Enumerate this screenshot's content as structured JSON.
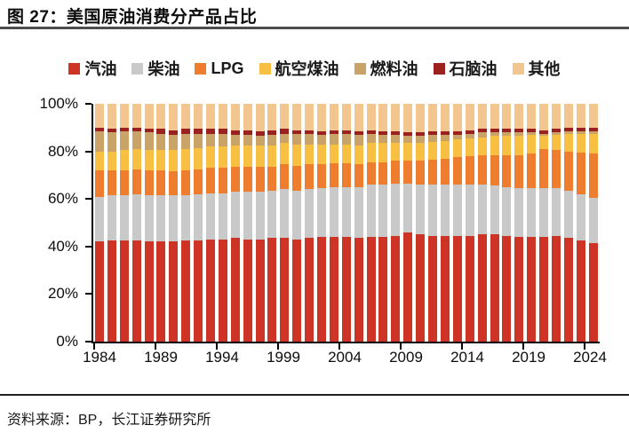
{
  "header": {
    "title": "图 27：美国原油消费分产品占比"
  },
  "footer": {
    "source": "资料来源：BP，长江证券研究所"
  },
  "chart_data": {
    "type": "bar",
    "stacked": true,
    "normalized_to_100_percent": true,
    "title": "美国原油消费分产品占比",
    "xlabel": "",
    "ylabel": "",
    "ylim": [
      0,
      100
    ],
    "grid": false,
    "legend_position": "top",
    "axis_color": "#000000",
    "x": [
      1984,
      1985,
      1986,
      1987,
      1988,
      1989,
      1990,
      1991,
      1992,
      1993,
      1994,
      1995,
      1996,
      1997,
      1998,
      1999,
      2000,
      2001,
      2002,
      2003,
      2004,
      2005,
      2006,
      2007,
      2008,
      2009,
      2010,
      2011,
      2012,
      2013,
      2014,
      2015,
      2016,
      2017,
      2018,
      2019,
      2020,
      2021,
      2022,
      2023,
      2024
    ],
    "x_tick_labels": [
      "1984",
      "1989",
      "1994",
      "1999",
      "2004",
      "2009",
      "2014",
      "2019",
      "2024"
    ],
    "y_tick_labels": [
      "0%",
      "20%",
      "40%",
      "60%",
      "80%",
      "100%"
    ],
    "y_tick_values": [
      0,
      20,
      40,
      60,
      80,
      100
    ],
    "series": [
      {
        "name": "汽油",
        "color": "#CE3426",
        "values": [
          42.0,
          42.5,
          42.5,
          42.5,
          42.0,
          42.0,
          42.0,
          42.5,
          42.5,
          43.0,
          43.0,
          43.5,
          43.0,
          43.0,
          43.5,
          43.5,
          43.0,
          43.5,
          44.0,
          44.0,
          44.0,
          43.5,
          44.0,
          44.0,
          44.5,
          46.0,
          45.0,
          44.5,
          44.5,
          44.5,
          44.5,
          45.0,
          45.0,
          44.5,
          44.0,
          44.0,
          44.0,
          44.5,
          43.5,
          42.5,
          41.5
        ]
      },
      {
        "name": "柴油",
        "color": "#C9C9C9",
        "values": [
          19.0,
          19.0,
          19.0,
          19.5,
          19.5,
          19.5,
          19.5,
          19.0,
          19.5,
          19.5,
          19.5,
          19.5,
          20.0,
          20.0,
          20.0,
          20.5,
          20.5,
          20.5,
          20.5,
          21.0,
          21.0,
          21.5,
          22.0,
          22.0,
          22.0,
          20.5,
          21.0,
          21.5,
          21.5,
          21.5,
          21.5,
          21.0,
          20.5,
          20.5,
          20.5,
          20.5,
          20.5,
          20.0,
          20.0,
          19.5,
          19.0
        ]
      },
      {
        "name": "LPG",
        "color": "#EE7D2F",
        "values": [
          11.0,
          10.5,
          10.5,
          10.5,
          10.5,
          10.5,
          10.0,
          10.5,
          10.5,
          10.5,
          10.5,
          10.5,
          10.5,
          10.5,
          10.0,
          10.5,
          10.5,
          10.5,
          10.0,
          10.0,
          10.0,
          9.5,
          9.5,
          9.5,
          9.5,
          9.5,
          10.0,
          10.5,
          11.0,
          11.5,
          12.0,
          12.5,
          13.0,
          13.5,
          14.0,
          14.5,
          16.5,
          16.0,
          16.5,
          17.5,
          18.5
        ]
      },
      {
        "name": "航空煤油",
        "color": "#F7C043",
        "values": [
          8.0,
          8.0,
          8.5,
          8.5,
          8.5,
          8.5,
          9.0,
          9.0,
          9.0,
          9.0,
          9.0,
          9.0,
          9.0,
          9.0,
          9.0,
          9.0,
          9.0,
          8.5,
          8.5,
          8.0,
          8.0,
          8.0,
          8.0,
          8.0,
          7.5,
          7.5,
          7.5,
          7.5,
          7.5,
          7.5,
          7.5,
          7.5,
          8.0,
          8.0,
          8.0,
          8.0,
          5.5,
          6.5,
          7.5,
          8.0,
          8.5
        ]
      },
      {
        "name": "燃料油",
        "color": "#C9A368",
        "values": [
          8.5,
          8.0,
          8.0,
          7.5,
          7.5,
          7.0,
          6.5,
          6.5,
          6.0,
          5.5,
          5.5,
          4.5,
          4.5,
          4.0,
          4.5,
          4.0,
          4.5,
          4.5,
          4.0,
          4.5,
          4.5,
          4.5,
          4.0,
          3.5,
          3.5,
          3.0,
          3.0,
          3.0,
          2.5,
          2.0,
          2.0,
          2.0,
          1.5,
          1.5,
          1.5,
          1.0,
          1.0,
          1.0,
          1.0,
          1.0,
          1.0
        ]
      },
      {
        "name": "石脑油",
        "color": "#9B2120",
        "values": [
          1.5,
          1.5,
          1.5,
          1.5,
          1.5,
          2.0,
          2.0,
          2.0,
          2.0,
          2.0,
          2.0,
          2.0,
          2.0,
          2.0,
          2.0,
          2.0,
          1.5,
          1.5,
          1.5,
          1.5,
          1.5,
          1.5,
          1.5,
          1.5,
          1.5,
          1.5,
          1.5,
          1.5,
          1.5,
          1.5,
          1.5,
          1.5,
          1.5,
          1.5,
          1.5,
          1.5,
          1.5,
          1.5,
          1.5,
          1.5,
          1.5
        ]
      },
      {
        "name": "其他",
        "color": "#F3C690",
        "values": [
          10.0,
          10.5,
          10.0,
          10.0,
          10.5,
          10.5,
          11.0,
          10.5,
          10.5,
          10.5,
          10.5,
          11.0,
          11.0,
          11.5,
          11.0,
          10.5,
          11.0,
          11.0,
          11.5,
          11.0,
          11.0,
          11.5,
          11.0,
          11.5,
          11.5,
          12.0,
          12.0,
          11.5,
          11.5,
          11.5,
          11.0,
          10.5,
          10.5,
          10.5,
          10.5,
          10.5,
          11.0,
          10.5,
          10.0,
          10.0,
          10.0
        ]
      }
    ]
  }
}
